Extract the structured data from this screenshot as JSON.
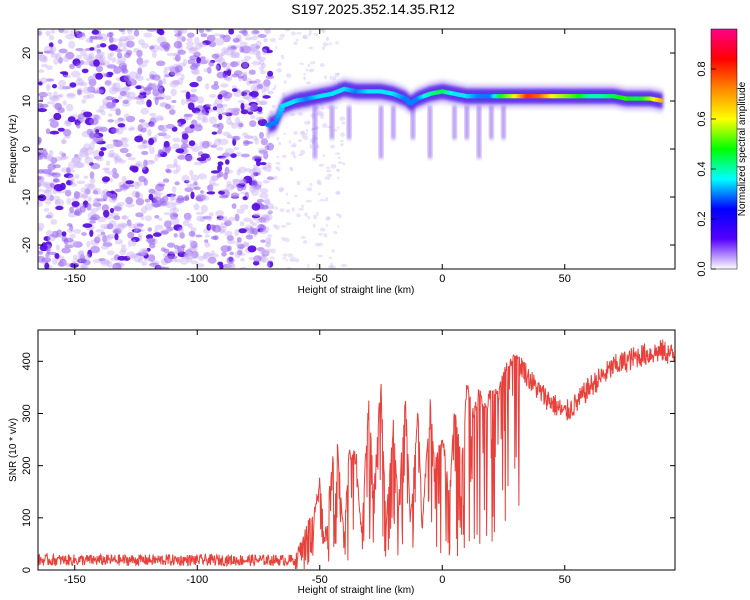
{
  "title": "S197.2025.352.14.35.R12",
  "chart_data": [
    {
      "type": "heatmap",
      "name": "spectrogram",
      "xlabel": "Height of straight line (km)",
      "ylabel": "Frequency (Hz)",
      "xlim": [
        -165,
        95
      ],
      "ylim": [
        -25,
        25
      ],
      "xticks": [
        -150,
        -100,
        -50,
        0,
        50
      ],
      "yticks": [
        -20,
        -10,
        0,
        10,
        20
      ],
      "noise_region_x": [
        -165,
        -70
      ],
      "signal_onset_x": -70,
      "ridge": {
        "x": [
          -71,
          -68,
          -65,
          -60,
          -55,
          -50,
          -45,
          -40,
          -35,
          -30,
          -25,
          -20,
          -15,
          -13,
          -10,
          -5,
          0,
          5,
          10,
          15,
          20,
          25,
          30,
          35,
          40,
          45,
          50,
          55,
          60,
          65,
          70,
          75,
          80,
          85,
          90
        ],
        "frequency": [
          5,
          5.5,
          9,
          10,
          10.5,
          11,
          11.5,
          12.5,
          12,
          12,
          12,
          11.5,
          10.5,
          9.5,
          10.5,
          11.5,
          12,
          11.5,
          11,
          11,
          11,
          11,
          11,
          11,
          11,
          11,
          11,
          11,
          11,
          11,
          11,
          10.5,
          10.5,
          10.5,
          10
        ],
        "amplitude": [
          0.3,
          0.3,
          0.35,
          0.35,
          0.3,
          0.35,
          0.35,
          0.35,
          0.3,
          0.35,
          0.35,
          0.35,
          0.3,
          0.3,
          0.3,
          0.4,
          0.45,
          0.35,
          0.35,
          0.3,
          0.3,
          0.5,
          0.6,
          0.8,
          0.75,
          0.6,
          0.55,
          0.5,
          0.4,
          0.4,
          0.45,
          0.5,
          0.45,
          0.55,
          0.7
        ]
      },
      "colorbar": {
        "label": "Normalized spectral amplitude",
        "range": [
          0,
          0.96
        ],
        "ticks": [
          "0.0",
          "0.2",
          "0.4",
          "0.6",
          "0.8"
        ],
        "colormap": [
          "#ffffff",
          "#5500ff",
          "#0000ff",
          "#00ffff",
          "#00ff00",
          "#ffff00",
          "#ff8800",
          "#ff0000",
          "#ff0088"
        ]
      }
    },
    {
      "type": "line",
      "name": "snr",
      "xlabel": "Height of straight line (km)",
      "ylabel": "SNR (10 * v/v)",
      "xlim": [
        -165,
        95
      ],
      "ylim": [
        0,
        460
      ],
      "xticks": [
        -150,
        -100,
        -50,
        0,
        50
      ],
      "yticks": [
        0,
        100,
        200,
        300,
        400
      ],
      "color": "#e8403a",
      "x": [
        -165,
        -140,
        -120,
        -100,
        -80,
        -65,
        -60,
        -57,
        -55,
        -52,
        -50,
        -48,
        -45,
        -43,
        -40,
        -38,
        -35,
        -33,
        -30,
        -28,
        -25,
        -23,
        -20,
        -18,
        -15,
        -13,
        -10,
        -8,
        -5,
        -3,
        0,
        3,
        5,
        8,
        10,
        13,
        15,
        18,
        20,
        23,
        25,
        28,
        30,
        32,
        35,
        40,
        45,
        50,
        55,
        60,
        70,
        80,
        90,
        95
      ],
      "values": [
        15,
        15,
        15,
        14,
        14,
        16,
        20,
        60,
        80,
        110,
        170,
        50,
        200,
        250,
        60,
        230,
        210,
        70,
        320,
        150,
        360,
        80,
        280,
        120,
        330,
        90,
        300,
        100,
        320,
        200,
        260,
        140,
        310,
        200,
        350,
        300,
        340,
        310,
        350,
        330,
        380,
        400,
        420,
        395,
        370,
        340,
        320,
        300,
        320,
        350,
        390,
        410,
        420,
        410
      ],
      "noise_band": {
        "floor": 8,
        "ceiling": 30
      }
    }
  ]
}
